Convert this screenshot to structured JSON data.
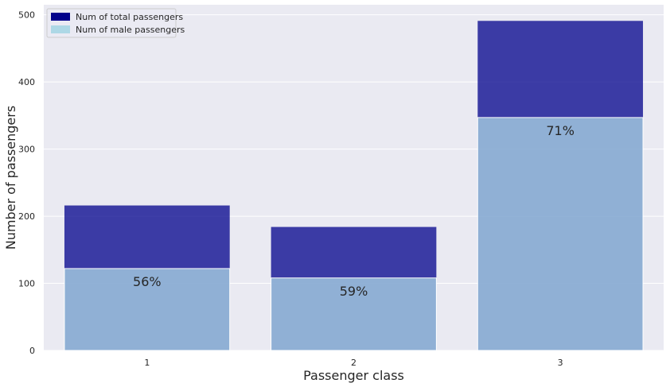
{
  "chart_data": {
    "type": "bar",
    "categories": [
      "1",
      "2",
      "3"
    ],
    "series": [
      {
        "name": "Num of total passengers",
        "values": [
          216,
          184,
          491
        ],
        "color": "#00008b"
      },
      {
        "name": "Num of male passengers",
        "values": [
          122,
          108,
          347
        ],
        "color": "#add8e6"
      }
    ],
    "data_labels": [
      "56%",
      "59%",
      "71%"
    ],
    "xlabel": "Passenger class",
    "ylabel": "Number of passengers",
    "ylim": [
      0,
      515
    ],
    "yticks": [
      0,
      100,
      200,
      300,
      400,
      500
    ],
    "grid": true,
    "legend_position": "top-left",
    "background_color": "#eaeaf2",
    "bar_alpha": 0.75
  }
}
